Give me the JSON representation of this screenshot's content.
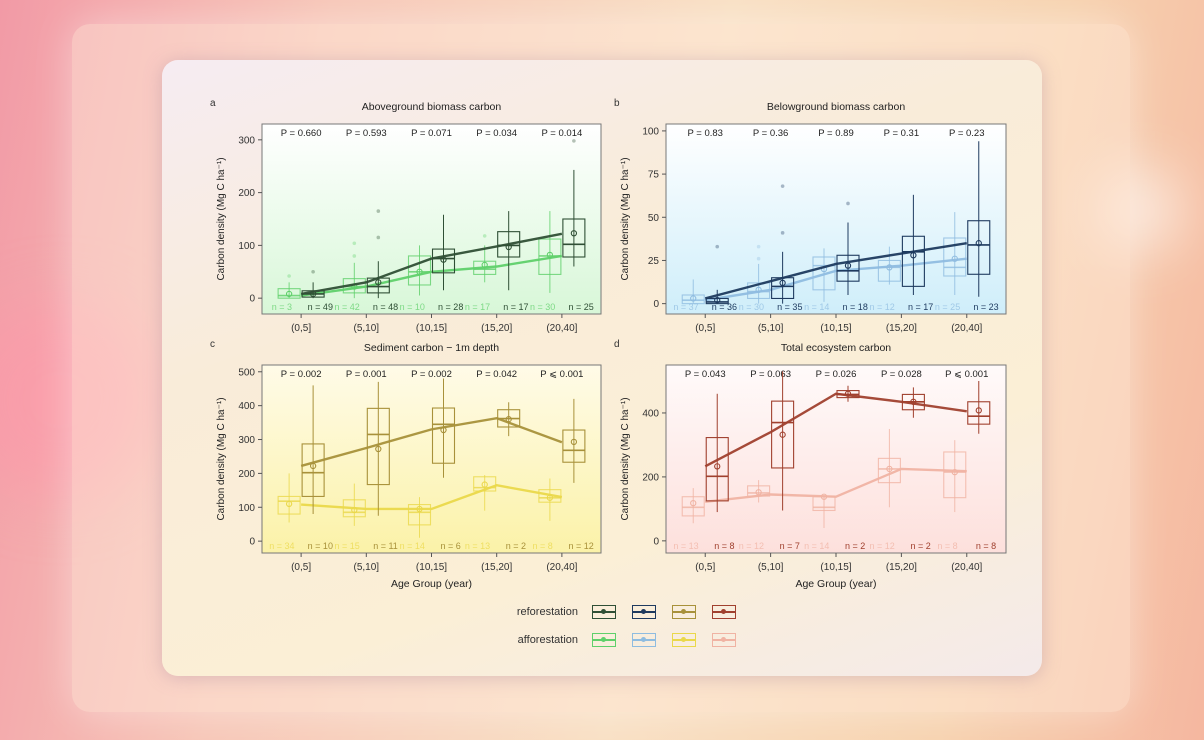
{
  "legend": {
    "reforestation_label": "reforestation",
    "afforestation_label": "afforestation",
    "reforestation_colors": [
      "#2f4f35",
      "#1e3a5f",
      "#a8913a",
      "#a0402e"
    ],
    "afforestation_colors": [
      "#5fd06a",
      "#8fbce0",
      "#ead84a",
      "#f0b3a3"
    ]
  },
  "chart_data": [
    {
      "panel": "a",
      "type": "box",
      "title": "Aboveground biomass carbon",
      "ylabel": "Carbon density (Mg C ha⁻¹)",
      "xlabel": "",
      "categories": [
        "(0,5]",
        "(5,10]",
        "(10,15]",
        "(15,20]",
        "(20,40]"
      ],
      "yticks": [
        0,
        100,
        200,
        300
      ],
      "ylim": [
        -30,
        330
      ],
      "p_values": [
        "P = 0.660",
        "P = 0.593",
        "P = 0.071",
        "P = 0.034",
        "P = 0.014"
      ],
      "series": [
        {
          "name": "afforestation",
          "color": "#5fd06a",
          "n": [
            "n = 3",
            "n = 42",
            "n = 10",
            "n = 17",
            "n = 30"
          ],
          "boxes": [
            [
              0,
              0,
              5,
              18,
              30
            ],
            [
              0,
              10,
              22,
              37,
              67
            ],
            [
              5,
              25,
              50,
              80,
              100
            ],
            [
              30,
              45,
              55,
              70,
              100
            ],
            [
              10,
              45,
              80,
              112,
              165
            ]
          ],
          "means": [
            8,
            22,
            50,
            63,
            82
          ],
          "line": [
            5,
            22,
            50,
            60,
            80
          ],
          "outliers": [
            [
              0,
              42
            ],
            [
              1,
              80
            ],
            [
              1,
              104
            ],
            [
              3,
              118
            ]
          ]
        },
        {
          "name": "reforestation",
          "color": "#2f4f35",
          "n": [
            "n = 49",
            "n = 48",
            "n = 28",
            "n = 17",
            "n = 25"
          ],
          "boxes": [
            [
              0,
              2,
              8,
              14,
              30
            ],
            [
              0,
              10,
              22,
              38,
              70
            ],
            [
              15,
              48,
              75,
              93,
              158
            ],
            [
              15,
              78,
              100,
              126,
              165
            ],
            [
              60,
              78,
              102,
              150,
              243
            ]
          ],
          "means": [
            8,
            30,
            73,
            97,
            123
          ],
          "line": [
            8,
            30,
            75,
            98,
            122
          ],
          "outliers": [
            [
              0,
              50
            ],
            [
              1,
              115
            ],
            [
              1,
              165
            ],
            [
              4,
              298
            ]
          ]
        }
      ]
    },
    {
      "panel": "b",
      "type": "box",
      "title": "Belowground biomass carbon",
      "ylabel": "Carbon density (Mg C ha⁻¹)",
      "xlabel": "",
      "categories": [
        "(0,5]",
        "(5,10]",
        "(10,15]",
        "(15,20]",
        "(20,40]"
      ],
      "yticks": [
        0,
        25,
        50,
        75,
        100
      ],
      "ylim": [
        -6,
        104
      ],
      "p_values": [
        "P = 0.83",
        "P = 0.36",
        "P = 0.89",
        "P = 0.31",
        "P = 0.23"
      ],
      "series": [
        {
          "name": "afforestation",
          "color": "#8fbce0",
          "n": [
            "n = 37",
            "n = 30",
            "n = 14",
            "n = 12",
            "n = 25"
          ],
          "boxes": [
            [
              0,
              0,
              2,
              5,
              14
            ],
            [
              0,
              3,
              7,
              12,
              23
            ],
            [
              1,
              8,
              22,
              27,
              32
            ],
            [
              11,
              13,
              21,
              25,
              33
            ],
            [
              5,
              16,
              21,
              38,
              53
            ]
          ],
          "means": [
            3,
            8,
            20,
            21,
            26
          ],
          "line": [
            2,
            8,
            19,
            22,
            26
          ],
          "outliers": [
            [
              1,
              33
            ],
            [
              1,
              26
            ]
          ]
        },
        {
          "name": "reforestation",
          "color": "#1e3a5f",
          "n": [
            "n = 36",
            "n = 35",
            "n = 18",
            "n = 17",
            "n = 23"
          ],
          "boxes": [
            [
              0,
              0,
              1,
              3,
              8
            ],
            [
              0,
              3,
              10,
              15,
              30
            ],
            [
              5,
              13,
              19,
              28,
              47
            ],
            [
              5,
              10,
              30,
              39,
              63
            ],
            [
              4,
              17,
              34,
              48,
              94
            ]
          ],
          "means": [
            2,
            12,
            22,
            28,
            35
          ],
          "line": [
            3,
            13,
            23,
            29,
            35
          ],
          "outliers": [
            [
              0,
              33
            ],
            [
              1,
              41
            ],
            [
              1,
              68
            ],
            [
              2,
              58
            ]
          ]
        }
      ]
    },
    {
      "panel": "c",
      "type": "box",
      "title": "Sediment carbon − 1m depth",
      "ylabel": "Carbon density (Mg C ha⁻¹)",
      "xlabel": "Age Group (year)",
      "categories": [
        "(0,5]",
        "(5,10]",
        "(10,15]",
        "(15,20]",
        "(20,40]"
      ],
      "yticks": [
        0,
        100,
        200,
        300,
        400,
        500
      ],
      "ylim": [
        -35,
        520
      ],
      "p_values": [
        "P = 0.002",
        "P = 0.001",
        "P = 0.002",
        "P = 0.042",
        "P ⩽ 0.001"
      ],
      "series": [
        {
          "name": "afforestation",
          "color": "#ead84a",
          "n": [
            "n = 34",
            "n = 15",
            "n = 14",
            "n = 13",
            "n = 8"
          ],
          "boxes": [
            [
              55,
              80,
              118,
              132,
              200
            ],
            [
              45,
              72,
              85,
              122,
              170
            ],
            [
              10,
              48,
              85,
              108,
              130
            ],
            [
              90,
              148,
              158,
              190,
              195
            ],
            [
              60,
              115,
              128,
              152,
              185
            ]
          ],
          "means": [
            110,
            92,
            95,
            167,
            128
          ],
          "line": [
            108,
            95,
            95,
            165,
            130
          ],
          "outliers": []
        },
        {
          "name": "reforestation",
          "color": "#a8913a",
          "n": [
            "n = 10",
            "n = 11",
            "n = 6",
            "n = 2",
            "n = 12"
          ],
          "boxes": [
            [
              80,
              132,
              202,
              287,
              460
            ],
            [
              75,
              167,
              315,
              392,
              470
            ],
            [
              187,
              230,
              345,
              393,
              480
            ],
            [
              310,
              337,
              362,
              388,
              410
            ],
            [
              172,
              233,
              268,
              328,
              420
            ]
          ],
          "means": [
            222,
            272,
            328,
            360,
            293
          ],
          "line": [
            222,
            275,
            330,
            363,
            292
          ],
          "outliers": []
        }
      ]
    },
    {
      "panel": "d",
      "type": "box",
      "title": "Total ecosystem carbon",
      "ylabel": "Carbon density (Mg C ha⁻¹)",
      "xlabel": "Age Group (year)",
      "categories": [
        "(0,5]",
        "(5,10]",
        "(10,15]",
        "(15,20]",
        "(20,40]"
      ],
      "yticks": [
        0,
        200,
        400
      ],
      "ylim": [
        -38,
        550
      ],
      "p_values": [
        "P = 0.043",
        "P = 0.063",
        "P = 0.026",
        "P = 0.028",
        "P ⩽ 0.001"
      ],
      "series": [
        {
          "name": "afforestation",
          "color": "#f0b3a3",
          "n": [
            "n = 13",
            "n = 12",
            "n = 14",
            "n = 12",
            "n = 8"
          ],
          "boxes": [
            [
              55,
              78,
              105,
              138,
              165
            ],
            [
              120,
              140,
              150,
              172,
              190
            ],
            [
              40,
              95,
              105,
              138,
              140
            ],
            [
              105,
              182,
              225,
              258,
              350
            ],
            [
              90,
              135,
              215,
              278,
              315
            ]
          ],
          "means": [
            118,
            152,
            138,
            225,
            215
          ],
          "line": [
            122,
            145,
            138,
            225,
            218
          ],
          "outliers": []
        },
        {
          "name": "reforestation",
          "color": "#a0402e",
          "n": [
            "n = 8",
            "n = 7",
            "n = 2",
            "n = 2",
            "n = 8"
          ],
          "boxes": [
            [
              90,
              125,
              202,
              323,
              460
            ],
            [
              95,
              228,
              370,
              437,
              530
            ],
            [
              435,
              448,
              458,
              470,
              485
            ],
            [
              385,
              410,
              435,
              458,
              480
            ],
            [
              335,
              365,
              390,
              435,
              500
            ]
          ],
          "means": [
            233,
            332,
            460,
            435,
            408
          ],
          "line": [
            233,
            340,
            460,
            435,
            405
          ],
          "outliers": []
        }
      ]
    }
  ]
}
